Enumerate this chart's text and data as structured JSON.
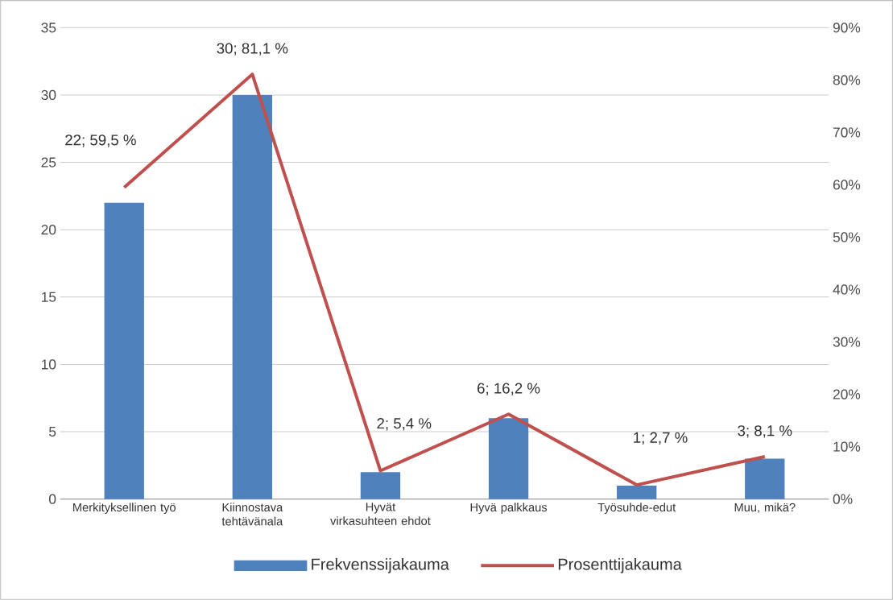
{
  "chart_data": {
    "type": "bar",
    "categories": [
      "Merkityksellinen työ",
      "Kiinnostava tehtävänala",
      "Hyvät virkasuhteen ehdot",
      "Hyvä palkkaus",
      "Työsuhde-edut",
      "Muu, mikä?"
    ],
    "series": [
      {
        "name": "Frekvenssijakauma",
        "color": "#4f81bd",
        "values": [
          22,
          30,
          2,
          6,
          1,
          3
        ]
      },
      {
        "name": "Prosenttijakauma",
        "type": "line",
        "axis": "y2",
        "color": "#c0504d",
        "values": [
          59.5,
          81.1,
          5.4,
          16.2,
          2.7,
          8.1
        ],
        "value_labels": [
          "22; 59,5 %",
          "30; 81,1 %",
          "2; 5,4 %",
          "6; 16,2 %",
          "1; 2,7 %",
          "3; 8,1 %"
        ]
      }
    ],
    "ylim": [
      0,
      35
    ],
    "yticks": [
      0,
      5,
      10,
      15,
      20,
      25,
      30,
      35
    ],
    "y2lim": [
      0,
      90
    ],
    "y2ticks": [
      {
        "value": 0,
        "label": "0%"
      },
      {
        "value": 10,
        "label": "10%"
      },
      {
        "value": 20,
        "label": "20%"
      },
      {
        "value": 30,
        "label": "30%"
      },
      {
        "value": 40,
        "label": "40%"
      },
      {
        "value": 50,
        "label": "50%"
      },
      {
        "value": 60,
        "label": "60%"
      },
      {
        "value": 70,
        "label": "70%"
      },
      {
        "value": 80,
        "label": "80%"
      },
      {
        "value": 90,
        "label": "90%"
      }
    ],
    "grid": "y",
    "legend": "bottom",
    "marker": "none"
  }
}
